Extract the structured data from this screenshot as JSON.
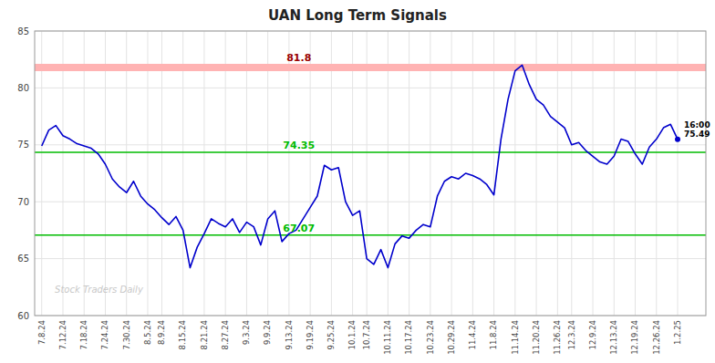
{
  "chart_data": {
    "type": "line",
    "title": "UAN Long Term Signals",
    "ylim": [
      60,
      85
    ],
    "yticks": [
      60,
      65,
      70,
      75,
      80,
      85
    ],
    "grid": true,
    "color": "#0000cc",
    "marker": "last",
    "watermark": "Stock Traders Daily",
    "annotations": [
      {
        "text": "16:00\n75.49"
      }
    ],
    "hlines": [
      {
        "value": 81.8,
        "label": "81.8",
        "color": "#ffb3b3",
        "label_color": "#990000"
      },
      {
        "value": 74.35,
        "label": "74.35",
        "color": "#00bb00",
        "label_color": "#00bb00"
      },
      {
        "value": 67.07,
        "label": "67.07",
        "color": "#00bb00",
        "label_color": "#00bb00"
      }
    ],
    "categories": [
      "7.8.24",
      null,
      null,
      "7.12.24",
      null,
      null,
      "7.18.24",
      null,
      null,
      "7.24.24",
      null,
      null,
      "7.30.24",
      null,
      null,
      "8.5.24",
      null,
      "8.9.24",
      null,
      null,
      "8.15.24",
      null,
      null,
      "8.21.24",
      null,
      null,
      "8.27.24",
      null,
      null,
      "9.3.24",
      null,
      null,
      "9.9.24",
      null,
      null,
      "9.13.24",
      null,
      null,
      "9.19.24",
      null,
      null,
      "9.25.24",
      null,
      null,
      "10.1.24",
      null,
      "10.7.24",
      null,
      null,
      "10.11.24",
      null,
      null,
      "10.17.24",
      null,
      null,
      "10.23.24",
      null,
      null,
      "10.29.24",
      null,
      null,
      "11.4.24",
      null,
      null,
      "11.8.24",
      null,
      null,
      "11.14.24",
      null,
      null,
      "11.20.24",
      null,
      null,
      "11.26.24",
      null,
      "12.3.24",
      null,
      null,
      "12.9.24",
      null,
      null,
      "12.13.24",
      null,
      null,
      "12.19.24",
      null,
      null,
      "12.26.24",
      null,
      null,
      "1.2.25"
    ],
    "values": [
      74.9,
      76.3,
      76.7,
      75.8,
      75.5,
      75.1,
      74.9,
      74.7,
      74.2,
      73.3,
      72.0,
      71.3,
      70.8,
      71.8,
      70.5,
      69.8,
      69.3,
      68.6,
      68.0,
      68.7,
      67.5,
      64.2,
      66.0,
      67.2,
      68.5,
      68.1,
      67.8,
      68.5,
      67.3,
      68.2,
      67.8,
      66.2,
      68.5,
      69.2,
      66.5,
      67.2,
      67.5,
      68.5,
      69.5,
      70.5,
      73.2,
      72.8,
      73.0,
      70.0,
      68.8,
      69.2,
      65.0,
      64.5,
      65.8,
      64.2,
      66.3,
      67.0,
      66.8,
      67.5,
      68.0,
      67.8,
      70.5,
      71.8,
      72.2,
      72.0,
      72.5,
      72.3,
      72.0,
      71.5,
      70.6,
      75.5,
      79.0,
      81.5,
      82.0,
      80.3,
      79.0,
      78.5,
      77.5,
      77.0,
      76.5,
      75.0,
      75.2,
      74.5,
      74.0,
      73.5,
      73.3,
      74.0,
      75.5,
      75.3,
      74.2,
      73.3,
      74.8,
      75.5,
      76.5,
      76.8,
      75.49
    ]
  }
}
